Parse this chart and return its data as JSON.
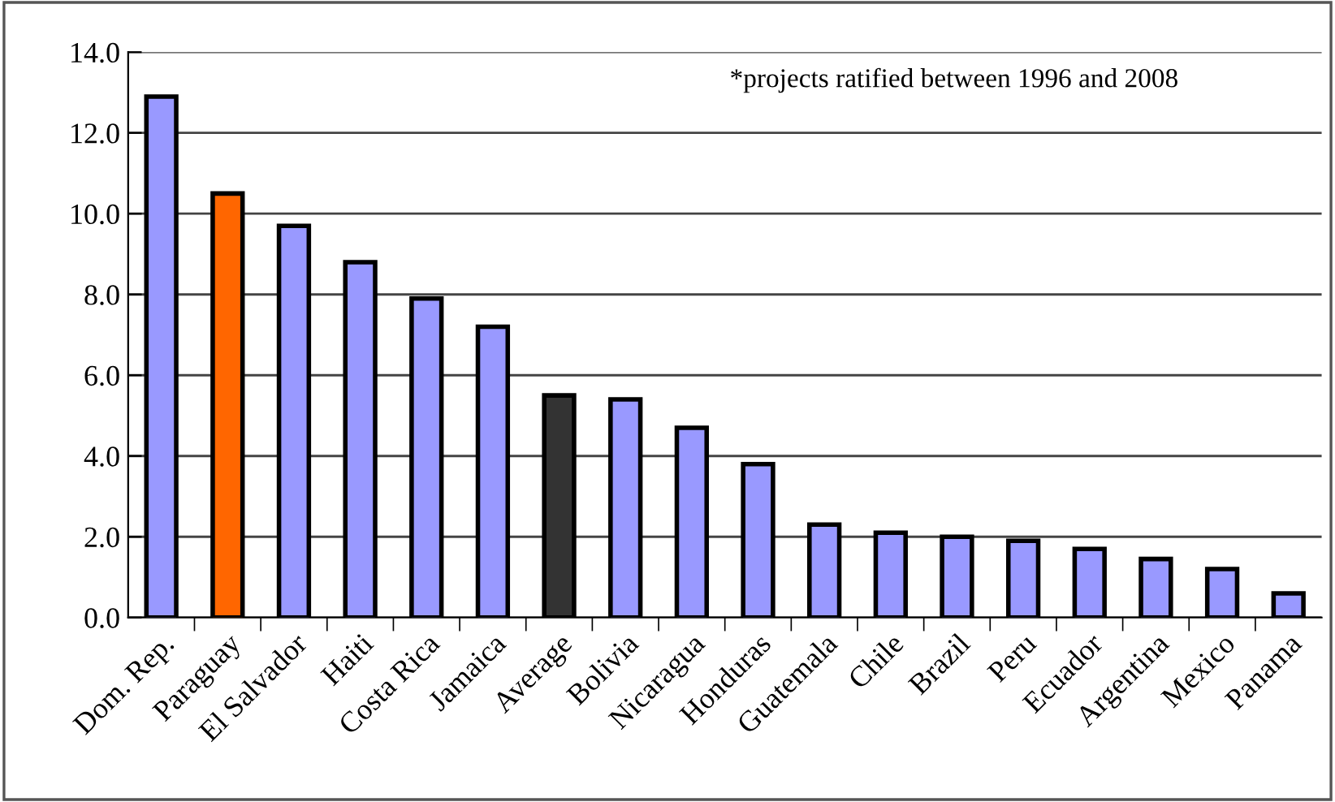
{
  "chart_data": {
    "type": "bar",
    "categories": [
      "Dom. Rep.",
      "Paraguay",
      "El Salvador",
      "Haiti",
      "Costa Rica",
      "Jamaica",
      "Average",
      "Bolivia",
      "Nicaragua",
      "Honduras",
      "Guatemala",
      "Chile",
      "Brazil",
      "Peru",
      "Ecuador",
      "Argentina",
      "Mexico",
      "Panama"
    ],
    "values": [
      12.9,
      10.5,
      9.7,
      8.8,
      7.9,
      7.2,
      5.5,
      5.4,
      4.7,
      3.8,
      2.3,
      2.1,
      2.0,
      1.9,
      1.7,
      1.45,
      1.2,
      0.6
    ],
    "colors": [
      "#9999ff",
      "#ff6600",
      "#9999ff",
      "#9999ff",
      "#9999ff",
      "#9999ff",
      "#333333",
      "#9999ff",
      "#9999ff",
      "#9999ff",
      "#9999ff",
      "#9999ff",
      "#9999ff",
      "#9999ff",
      "#9999ff",
      "#9999ff",
      "#9999ff",
      "#9999ff"
    ],
    "ylim": [
      0,
      14
    ],
    "yticks": [
      {
        "value": 0,
        "label": "0.0"
      },
      {
        "value": 2,
        "label": "2.0"
      },
      {
        "value": 4,
        "label": "4.0"
      },
      {
        "value": 6,
        "label": "6.0"
      },
      {
        "value": 8,
        "label": "8.0"
      },
      {
        "value": 10,
        "label": "10.0"
      },
      {
        "value": 12,
        "label": "12.0"
      },
      {
        "value": 14,
        "label": "14.0"
      }
    ],
    "grid": "y",
    "annotations": [
      "*projects ratified between 1996 and 2008"
    ]
  }
}
